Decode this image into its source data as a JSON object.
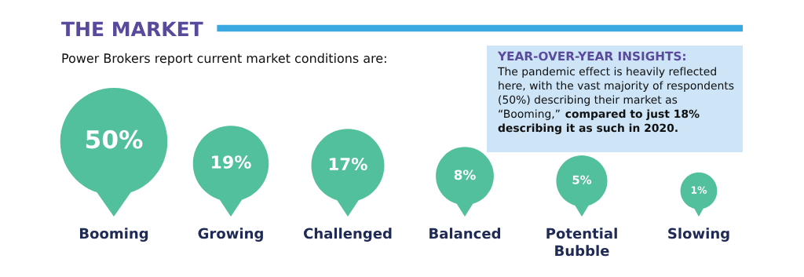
{
  "chart_data": {
    "type": "other",
    "title": "THE MARKET",
    "subtitle": "Power Brokers report current market conditions are:",
    "categories": [
      "Booming",
      "Growing",
      "Challenged",
      "Balanced",
      "Potential Bubble",
      "Slowing"
    ],
    "values": [
      50,
      19,
      17,
      8,
      5,
      1
    ],
    "value_labels": [
      "50%",
      "19%",
      "17%",
      "8%",
      "5%",
      "1%"
    ],
    "color": "#52c09c",
    "annotations": [
      "YEAR-OVER-YEAR INSIGHTS:",
      "The pandemic effect is heavily reflected here, with the vast majority of respondents (50%) describing their market as “Booming,”",
      "compared to just 18% describing it as such in 2020."
    ]
  }
}
